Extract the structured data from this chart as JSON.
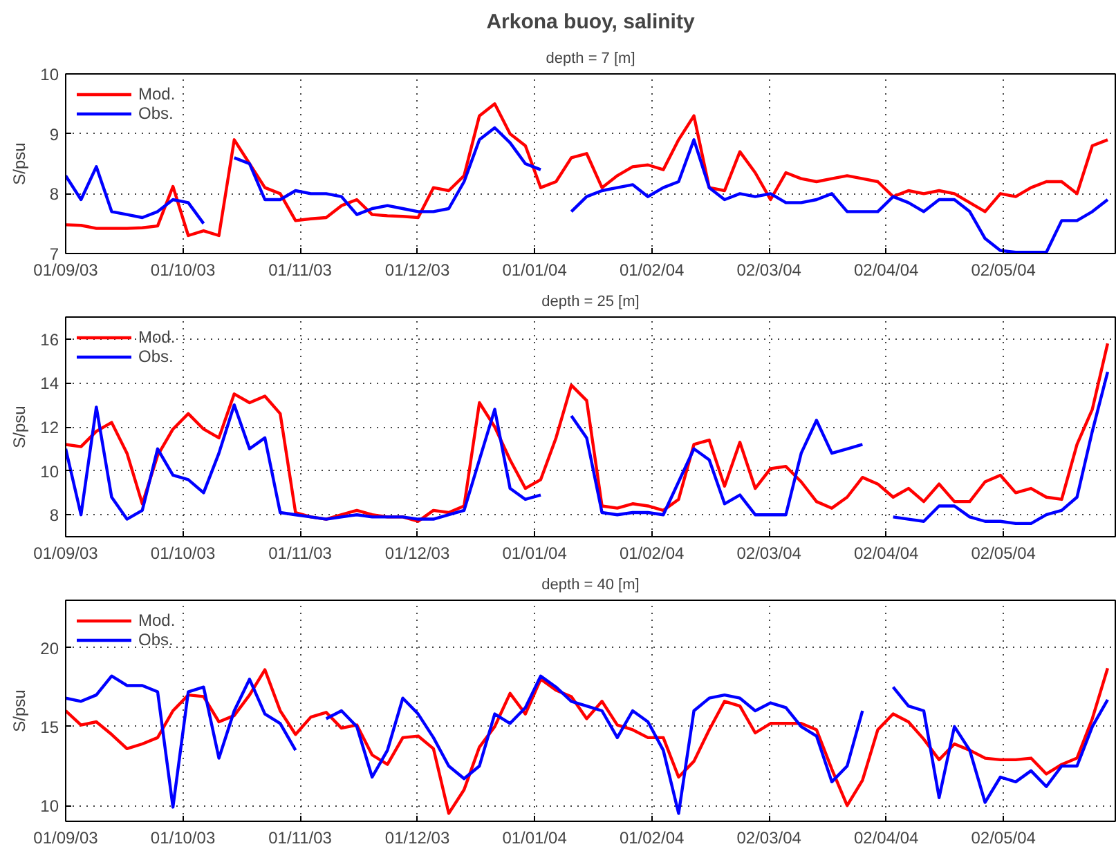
{
  "chart_data": [
    {
      "type": "line",
      "title": "Arkona buoy, salinity",
      "subtitle": "depth = 7 [m]",
      "ylabel": "S/psu",
      "x": [
        "2003-09-01",
        "2003-09-05",
        "2003-09-09",
        "2003-09-13",
        "2003-09-17",
        "2003-09-21",
        "2003-09-25",
        "2003-09-29",
        "2003-10-03",
        "2003-10-07",
        "2003-10-11",
        "2003-10-15",
        "2003-10-19",
        "2003-10-23",
        "2003-10-27",
        "2003-10-31",
        "2003-11-04",
        "2003-11-08",
        "2003-11-12",
        "2003-11-16",
        "2003-11-20",
        "2003-11-24",
        "2003-11-28",
        "2003-12-02",
        "2003-12-06",
        "2003-12-10",
        "2003-12-14",
        "2003-12-18",
        "2003-12-22",
        "2003-12-26",
        "2003-12-30",
        "2004-01-03",
        "2004-01-07",
        "2004-01-11",
        "2004-01-15",
        "2004-01-19",
        "2004-01-23",
        "2004-01-27",
        "2004-01-31",
        "2004-02-04",
        "2004-02-08",
        "2004-02-12",
        "2004-02-16",
        "2004-02-20",
        "2004-02-24",
        "2004-02-28",
        "2004-03-03",
        "2004-03-07",
        "2004-03-11",
        "2004-03-15",
        "2004-03-19",
        "2004-03-23",
        "2004-03-27",
        "2004-03-31",
        "2004-04-04",
        "2004-04-08",
        "2004-04-12",
        "2004-04-16",
        "2004-04-20",
        "2004-04-24",
        "2004-04-28",
        "2004-05-02",
        "2004-05-06",
        "2004-05-10",
        "2004-05-14",
        "2004-05-18",
        "2004-05-22",
        "2004-05-26",
        "2004-05-30"
      ],
      "series": [
        {
          "name": "Mod.",
          "color": "#ff0000",
          "values": [
            7.48,
            7.47,
            7.42,
            7.42,
            7.42,
            7.43,
            7.46,
            8.12,
            7.3,
            7.38,
            7.3,
            8.9,
            8.5,
            8.1,
            8.0,
            7.55,
            7.58,
            7.6,
            7.8,
            7.9,
            7.65,
            7.63,
            7.62,
            7.6,
            8.1,
            8.05,
            8.3,
            9.3,
            9.5,
            9.0,
            8.8,
            8.1,
            8.2,
            8.6,
            8.67,
            8.1,
            8.3,
            8.45,
            8.48,
            8.4,
            8.9,
            9.3,
            8.1,
            8.05,
            8.7,
            8.35,
            7.9,
            8.35,
            8.25,
            8.2,
            8.25,
            8.3,
            8.25,
            8.2,
            7.95,
            8.05,
            8.0,
            8.05,
            8.0,
            7.85,
            7.7,
            8.0,
            7.95,
            8.1,
            8.2,
            8.2,
            8.0,
            8.8,
            8.9
          ]
        },
        {
          "name": "Obs.",
          "color": "#0000ff",
          "values": [
            8.3,
            7.9,
            8.45,
            7.7,
            7.65,
            7.6,
            7.7,
            7.9,
            7.85,
            7.5,
            null,
            8.6,
            8.5,
            7.9,
            7.9,
            8.05,
            8.0,
            8.0,
            7.95,
            7.65,
            7.75,
            7.8,
            7.75,
            7.7,
            7.7,
            7.75,
            8.2,
            8.9,
            9.1,
            8.85,
            8.5,
            8.4,
            null,
            7.7,
            7.95,
            8.05,
            8.1,
            8.15,
            7.95,
            8.1,
            8.2,
            8.9,
            8.1,
            7.9,
            8.0,
            7.95,
            8.0,
            7.85,
            7.85,
            7.9,
            8.0,
            7.7,
            7.7,
            7.7,
            7.95,
            7.85,
            7.7,
            7.9,
            7.9,
            7.7,
            7.25,
            7.05,
            7.02,
            7.02,
            7.02,
            7.55,
            7.55,
            7.7,
            7.9
          ]
        }
      ],
      "xlim": [
        "2003-09-01",
        "2004-06-01"
      ],
      "xticks": [
        {
          "value": "2003-09-01",
          "label": "01/09/03"
        },
        {
          "value": "2003-10-01T14:24",
          "label": "01/10/03"
        },
        {
          "value": "2003-11-01T04:48",
          "label": "01/11/03"
        },
        {
          "value": "2003-12-01T19:12",
          "label": "01/12/03"
        },
        {
          "value": "2004-01-01T09:36",
          "label": "01/01/04"
        },
        {
          "value": "2004-02-01",
          "label": "01/02/04"
        },
        {
          "value": "2004-03-02T14:24",
          "label": "02/03/04"
        },
        {
          "value": "2004-04-02T04:48",
          "label": "02/04/04"
        },
        {
          "value": "2004-05-02T19:12",
          "label": "02/05/04"
        }
      ],
      "ylim": [
        7,
        10
      ],
      "yticks": [
        7,
        8,
        9,
        10
      ],
      "grid": true,
      "legend": "top left",
      "line_style": "solid",
      "marker": "none"
    },
    {
      "type": "line",
      "title": "depth = 25 [m]",
      "ylabel": "S/psu",
      "x": [
        "2003-09-01",
        "2003-09-05",
        "2003-09-09",
        "2003-09-13",
        "2003-09-17",
        "2003-09-21",
        "2003-09-25",
        "2003-09-29",
        "2003-10-03",
        "2003-10-07",
        "2003-10-11",
        "2003-10-15",
        "2003-10-19",
        "2003-10-23",
        "2003-10-27",
        "2003-10-31",
        "2003-11-04",
        "2003-11-08",
        "2003-11-12",
        "2003-11-16",
        "2003-11-20",
        "2003-11-24",
        "2003-11-28",
        "2003-12-02",
        "2003-12-06",
        "2003-12-10",
        "2003-12-14",
        "2003-12-18",
        "2003-12-22",
        "2003-12-26",
        "2003-12-30",
        "2004-01-03",
        "2004-01-07",
        "2004-01-11",
        "2004-01-15",
        "2004-01-19",
        "2004-01-23",
        "2004-01-27",
        "2004-01-31",
        "2004-02-04",
        "2004-02-08",
        "2004-02-12",
        "2004-02-16",
        "2004-02-20",
        "2004-02-24",
        "2004-02-28",
        "2004-03-03",
        "2004-03-07",
        "2004-03-11",
        "2004-03-15",
        "2004-03-19",
        "2004-03-23",
        "2004-03-27",
        "2004-03-31",
        "2004-04-04",
        "2004-04-08",
        "2004-04-12",
        "2004-04-16",
        "2004-04-20",
        "2004-04-24",
        "2004-04-28",
        "2004-05-02",
        "2004-05-06",
        "2004-05-10",
        "2004-05-14",
        "2004-05-18",
        "2004-05-22",
        "2004-05-26",
        "2004-05-30"
      ],
      "series": [
        {
          "name": "Mod.",
          "color": "#ff0000",
          "values": [
            11.2,
            11.1,
            11.8,
            12.2,
            10.8,
            8.5,
            10.7,
            11.9,
            12.6,
            11.9,
            11.5,
            13.5,
            13.1,
            13.4,
            12.6,
            8.1,
            7.9,
            7.8,
            8.0,
            8.2,
            8.0,
            7.9,
            7.9,
            7.7,
            8.2,
            8.1,
            8.4,
            13.1,
            12.0,
            10.5,
            9.2,
            9.6,
            11.5,
            13.9,
            13.2,
            8.4,
            8.3,
            8.5,
            8.4,
            8.2,
            8.7,
            11.2,
            11.4,
            9.3,
            11.3,
            9.2,
            10.1,
            10.2,
            9.5,
            8.6,
            8.3,
            8.8,
            9.7,
            9.4,
            8.8,
            9.2,
            8.6,
            9.4,
            8.6,
            8.6,
            9.5,
            9.8,
            9.0,
            9.2,
            8.8,
            8.7,
            11.2,
            12.8,
            15.8
          ]
        },
        {
          "name": "Obs.",
          "color": "#0000ff",
          "values": [
            11.0,
            8.0,
            12.9,
            8.8,
            7.8,
            8.2,
            11.0,
            9.8,
            9.6,
            9.0,
            10.8,
            13.0,
            11.0,
            11.5,
            8.1,
            8.0,
            7.9,
            7.8,
            7.9,
            8.0,
            7.9,
            7.9,
            7.9,
            7.8,
            7.8,
            8.0,
            8.2,
            10.5,
            12.8,
            9.2,
            8.7,
            8.9,
            null,
            12.5,
            11.5,
            8.1,
            8.0,
            8.1,
            8.1,
            8.0,
            9.5,
            11.0,
            10.5,
            8.5,
            8.9,
            8.0,
            8.0,
            8.0,
            10.8,
            12.3,
            10.8,
            11.0,
            11.2,
            null,
            7.9,
            7.8,
            7.7,
            8.4,
            8.4,
            7.9,
            7.7,
            7.7,
            7.6,
            7.6,
            8.0,
            8.2,
            8.8,
            11.8,
            14.5
          ]
        }
      ],
      "xlim": [
        "2003-09-01",
        "2004-06-01"
      ],
      "xticks": [
        {
          "value": "2003-09-01",
          "label": "01/09/03"
        },
        {
          "value": "2003-10-01T14:24",
          "label": "01/10/03"
        },
        {
          "value": "2003-11-01T04:48",
          "label": "01/11/03"
        },
        {
          "value": "2003-12-01T19:12",
          "label": "01/12/03"
        },
        {
          "value": "2004-01-01T09:36",
          "label": "01/01/04"
        },
        {
          "value": "2004-02-01",
          "label": "01/02/04"
        },
        {
          "value": "2004-03-02T14:24",
          "label": "02/03/04"
        },
        {
          "value": "2004-04-02T04:48",
          "label": "02/04/04"
        },
        {
          "value": "2004-05-02T19:12",
          "label": "02/05/04"
        }
      ],
      "ylim": [
        7,
        17
      ],
      "yticks": [
        8,
        10,
        12,
        14,
        16
      ],
      "grid": true,
      "legend": "top left",
      "line_style": "solid",
      "marker": "none"
    },
    {
      "type": "line",
      "title": "depth = 40 [m]",
      "ylabel": "S/psu",
      "x": [
        "2003-09-01",
        "2003-09-05",
        "2003-09-09",
        "2003-09-13",
        "2003-09-17",
        "2003-09-21",
        "2003-09-25",
        "2003-09-29",
        "2003-10-03",
        "2003-10-07",
        "2003-10-11",
        "2003-10-15",
        "2003-10-19",
        "2003-10-23",
        "2003-10-27",
        "2003-10-31",
        "2003-11-04",
        "2003-11-08",
        "2003-11-12",
        "2003-11-16",
        "2003-11-20",
        "2003-11-24",
        "2003-11-28",
        "2003-12-02",
        "2003-12-06",
        "2003-12-10",
        "2003-12-14",
        "2003-12-18",
        "2003-12-22",
        "2003-12-26",
        "2003-12-30",
        "2004-01-03",
        "2004-01-07",
        "2004-01-11",
        "2004-01-15",
        "2004-01-19",
        "2004-01-23",
        "2004-01-27",
        "2004-01-31",
        "2004-02-04",
        "2004-02-08",
        "2004-02-12",
        "2004-02-16",
        "2004-02-20",
        "2004-02-24",
        "2004-02-28",
        "2004-03-03",
        "2004-03-07",
        "2004-03-11",
        "2004-03-15",
        "2004-03-19",
        "2004-03-23",
        "2004-03-27",
        "2004-03-31",
        "2004-04-04",
        "2004-04-08",
        "2004-04-12",
        "2004-04-16",
        "2004-04-20",
        "2004-04-24",
        "2004-04-28",
        "2004-05-02",
        "2004-05-06",
        "2004-05-10",
        "2004-05-14",
        "2004-05-18",
        "2004-05-22",
        "2004-05-26",
        "2004-05-30"
      ],
      "series": [
        {
          "name": "Mod.",
          "color": "#ff0000",
          "values": [
            16.0,
            15.1,
            15.3,
            14.5,
            13.6,
            13.9,
            14.3,
            16.0,
            17.0,
            16.9,
            15.3,
            15.7,
            17.0,
            18.6,
            16.0,
            14.5,
            15.6,
            15.9,
            14.9,
            15.1,
            13.2,
            12.6,
            14.3,
            14.4,
            13.6,
            9.5,
            11.0,
            13.7,
            15.0,
            17.1,
            15.8,
            18.0,
            17.3,
            16.9,
            15.5,
            16.6,
            15.1,
            14.8,
            14.3,
            14.3,
            11.8,
            12.8,
            14.8,
            16.6,
            16.3,
            14.6,
            15.2,
            15.2,
            15.2,
            14.8,
            12.3,
            10.0,
            11.6,
            14.8,
            15.8,
            15.3,
            14.2,
            12.9,
            13.9,
            13.5,
            13.0,
            12.9,
            12.9,
            13.0,
            12.0,
            12.6,
            13.0,
            15.5,
            18.7
          ]
        },
        {
          "name": "Obs.",
          "color": "#0000ff",
          "values": [
            16.8,
            16.6,
            17.0,
            18.2,
            17.6,
            17.6,
            17.2,
            9.9,
            17.2,
            17.5,
            13.0,
            16.0,
            18.0,
            15.8,
            15.2,
            13.5,
            null,
            15.5,
            16.0,
            15.0,
            11.8,
            13.5,
            16.8,
            15.8,
            14.3,
            12.5,
            11.7,
            12.5,
            15.8,
            15.2,
            16.2,
            18.2,
            17.5,
            16.6,
            16.3,
            16.0,
            14.3,
            16.0,
            15.3,
            13.5,
            9.5,
            16.0,
            16.8,
            17.0,
            16.8,
            16.0,
            16.5,
            16.2,
            15.0,
            14.4,
            11.5,
            12.5,
            16.0,
            null,
            17.5,
            16.3,
            16.0,
            10.5,
            15.0,
            13.5,
            10.2,
            11.8,
            11.5,
            12.2,
            11.2,
            12.5,
            12.5,
            15.0,
            16.7
          ]
        }
      ],
      "xlim": [
        "2003-09-01",
        "2004-06-01"
      ],
      "xticks": [
        {
          "value": "2003-09-01",
          "label": "01/09/03"
        },
        {
          "value": "2003-10-01T14:24",
          "label": "01/10/03"
        },
        {
          "value": "2003-11-01T04:48",
          "label": "01/11/03"
        },
        {
          "value": "2003-12-01T19:12",
          "label": "01/12/03"
        },
        {
          "value": "2004-01-01T09:36",
          "label": "01/01/04"
        },
        {
          "value": "2004-02-01",
          "label": "01/02/04"
        },
        {
          "value": "2004-03-02T14:24",
          "label": "02/03/04"
        },
        {
          "value": "2004-04-02T04:48",
          "label": "02/04/04"
        },
        {
          "value": "2004-05-02T19:12",
          "label": "02/05/04"
        }
      ],
      "ylim": [
        9,
        23
      ],
      "yticks": [
        10,
        15,
        20
      ],
      "grid": true,
      "legend": "top left",
      "line_style": "solid",
      "marker": "none"
    }
  ]
}
